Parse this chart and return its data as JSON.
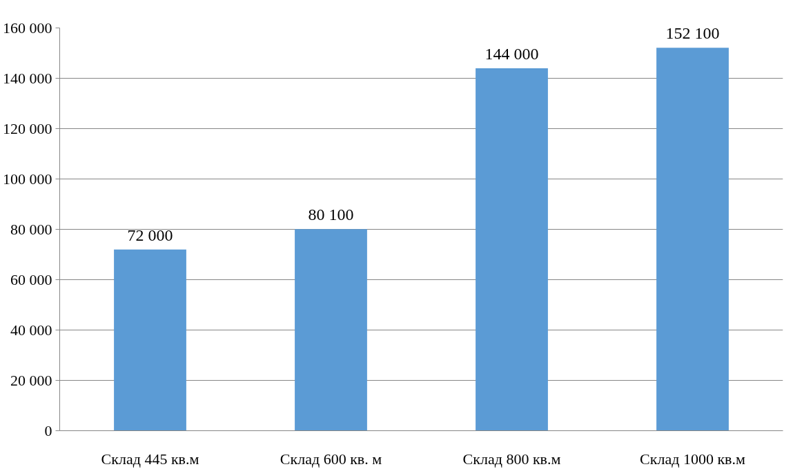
{
  "chart_data": {
    "type": "bar",
    "categories": [
      "Склад 445 кв.м",
      "Склад 600 кв. м",
      "Склад 800 кв.м",
      "Склад 1000 кв.м"
    ],
    "values": [
      72000,
      80100,
      144000,
      152100
    ],
    "value_labels": [
      "72 000",
      "80 100",
      "144 000",
      "152 100"
    ],
    "color": "#5b9bd5",
    "ylim": [
      0,
      160000
    ],
    "yticks": [
      {
        "value": 0,
        "label": "0"
      },
      {
        "value": 20000,
        "label": "20 000"
      },
      {
        "value": 40000,
        "label": "40 000"
      },
      {
        "value": 60000,
        "label": "60 000"
      },
      {
        "value": 80000,
        "label": "80 000"
      },
      {
        "value": 100000,
        "label": "100 000"
      },
      {
        "value": 120000,
        "label": "120 000"
      },
      {
        "value": 140000,
        "label": "140 000"
      },
      {
        "value": 160000,
        "label": "160 000"
      }
    ],
    "grid": "y"
  }
}
